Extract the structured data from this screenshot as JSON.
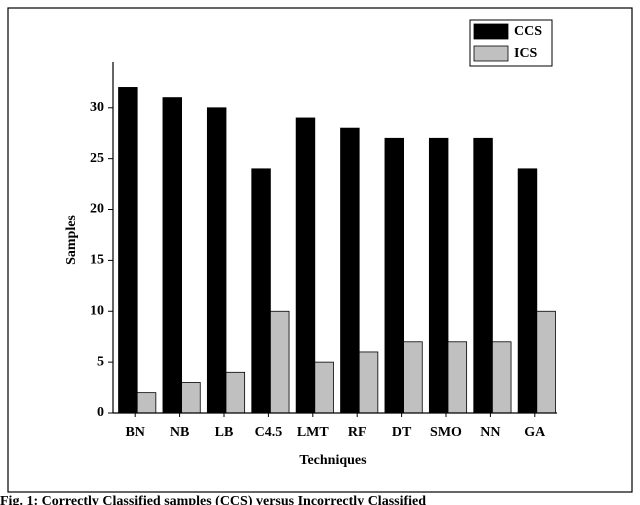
{
  "chart_data": {
    "type": "bar",
    "x_label": "Techniques",
    "y_label": "Samples",
    "categories": [
      "BN",
      "NB",
      "LB",
      "C4.5",
      "LMT",
      "RF",
      "DT",
      "SMO",
      "NN",
      "GA"
    ],
    "series": [
      {
        "name": "CCS",
        "color": "#000000",
        "values": [
          32,
          31,
          30,
          24,
          29,
          28,
          27,
          27,
          27,
          24
        ]
      },
      {
        "name": "ICS",
        "color": "#c0c0c0",
        "values": [
          2,
          3,
          4,
          10,
          5,
          6,
          7,
          7,
          7,
          10
        ]
      }
    ],
    "ylim": [
      0,
      34.5
    ],
    "yticks": [
      0,
      5,
      10,
      15,
      20,
      25,
      30
    ],
    "legend": "top-right",
    "caption": "Fig. 1:  Correctly Classified samples (CCS) versus Incorrectly Classified"
  }
}
